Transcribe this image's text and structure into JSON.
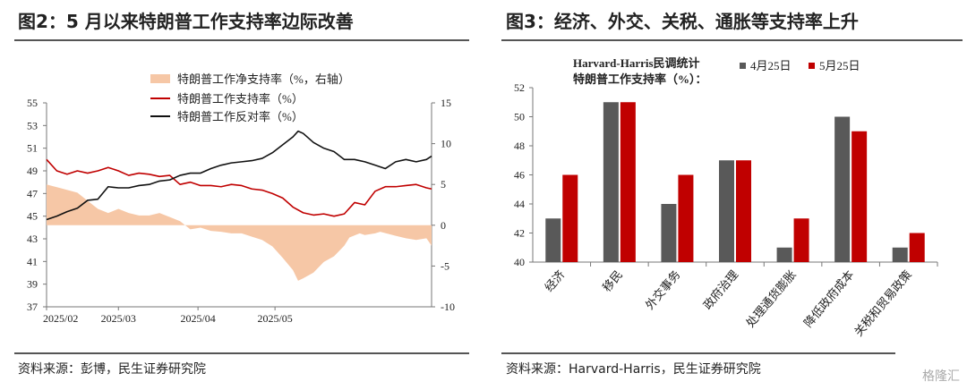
{
  "left": {
    "title": "图2：5 月以来特朗普工作支持率边际改善",
    "source": "资料来源：彭博，民生证券研究院"
  },
  "right": {
    "title": "图3：经济、外交、关税、通胀等支持率上升",
    "source": "资料来源：Harvard-Harris，民生证券研究院"
  },
  "watermark": "格隆汇",
  "chart_data": [
    {
      "type": "line",
      "legend": [
        "特朗普工作净支持率（%，右轴）",
        "特朗普工作支持率（%）",
        "特朗普工作反对率（%）"
      ],
      "x_tick_labels": [
        "2025/02",
        "2025/03",
        "2025/04",
        "2025/05"
      ],
      "y_left_range": [
        37,
        55
      ],
      "y_left_ticks": [
        37,
        39,
        41,
        43,
        45,
        47,
        49,
        51,
        53,
        55
      ],
      "y_right_range": [
        -10,
        15
      ],
      "y_right_ticks": [
        -10,
        -5,
        0,
        5,
        10,
        15
      ],
      "x_range_days": [
        0,
        120
      ],
      "series": [
        {
          "name": "特朗普工作净支持率（%，右轴）",
          "axis": "right",
          "style": "area",
          "color": "#f6c7a6",
          "points": [
            [
              0,
              5
            ],
            [
              6,
              4.5
            ],
            [
              12,
              4
            ],
            [
              16,
              3
            ],
            [
              20,
              2
            ],
            [
              24,
              1.5
            ],
            [
              28,
              2
            ],
            [
              32,
              1.5
            ],
            [
              36,
              1.2
            ],
            [
              40,
              1.2
            ],
            [
              44,
              1.5
            ],
            [
              48,
              1
            ],
            [
              52,
              0.5
            ],
            [
              56,
              -0.5
            ],
            [
              60,
              -0.3
            ],
            [
              64,
              -0.7
            ],
            [
              68,
              -0.8
            ],
            [
              72,
              -1
            ],
            [
              76,
              -1
            ],
            [
              80,
              -1.4
            ],
            [
              84,
              -1.8
            ],
            [
              88,
              -2.6
            ],
            [
              92,
              -4
            ],
            [
              96,
              -5.5
            ],
            [
              98,
              -6.8
            ],
            [
              100,
              -6.5
            ],
            [
              104,
              -5.8
            ],
            [
              108,
              -4.5
            ],
            [
              112,
              -3.8
            ],
            [
              116,
              -2.5
            ],
            [
              118,
              -1.5
            ],
            [
              122,
              -1
            ],
            [
              124,
              -1.2
            ],
            [
              128,
              -1
            ],
            [
              130,
              -0.8
            ],
            [
              136,
              -1.3
            ],
            [
              140,
              -1.6
            ],
            [
              144,
              -1.8
            ],
            [
              148,
              -1.6
            ],
            [
              150,
              -2.5
            ]
          ]
        },
        {
          "name": "特朗普工作支持率（%）",
          "axis": "left",
          "style": "line",
          "color": "#c00000",
          "points": [
            [
              0,
              50
            ],
            [
              4,
              49
            ],
            [
              8,
              48.7
            ],
            [
              12,
              49
            ],
            [
              16,
              48.8
            ],
            [
              20,
              49
            ],
            [
              24,
              49.3
            ],
            [
              28,
              49
            ],
            [
              32,
              48.6
            ],
            [
              36,
              48.8
            ],
            [
              40,
              48.7
            ],
            [
              44,
              48.5
            ],
            [
              48,
              48.6
            ],
            [
              52,
              47.8
            ],
            [
              56,
              48
            ],
            [
              60,
              47.7
            ],
            [
              64,
              47.7
            ],
            [
              68,
              47.6
            ],
            [
              72,
              47.8
            ],
            [
              76,
              47.7
            ],
            [
              80,
              47.4
            ],
            [
              84,
              47.3
            ],
            [
              88,
              47
            ],
            [
              92,
              46.6
            ],
            [
              96,
              45.8
            ],
            [
              100,
              45.3
            ],
            [
              104,
              45.1
            ],
            [
              108,
              45.2
            ],
            [
              112,
              45
            ],
            [
              116,
              45.2
            ],
            [
              120,
              46.2
            ],
            [
              124,
              46
            ],
            [
              128,
              47.2
            ],
            [
              132,
              47.6
            ],
            [
              136,
              47.6
            ],
            [
              140,
              47.7
            ],
            [
              144,
              47.8
            ],
            [
              148,
              47.5
            ],
            [
              150,
              47.4
            ]
          ]
        },
        {
          "name": "特朗普工作反对率（%）",
          "axis": "left",
          "style": "line",
          "color": "#111111",
          "points": [
            [
              0,
              44.7
            ],
            [
              4,
              45
            ],
            [
              8,
              45.4
            ],
            [
              12,
              45.7
            ],
            [
              16,
              46.4
            ],
            [
              20,
              46.5
            ],
            [
              24,
              47.6
            ],
            [
              28,
              47.5
            ],
            [
              32,
              47.5
            ],
            [
              36,
              47.7
            ],
            [
              40,
              47.8
            ],
            [
              44,
              48.1
            ],
            [
              48,
              48.2
            ],
            [
              52,
              48.6
            ],
            [
              56,
              48.8
            ],
            [
              60,
              48.8
            ],
            [
              64,
              49.2
            ],
            [
              68,
              49.5
            ],
            [
              72,
              49.7
            ],
            [
              76,
              49.8
            ],
            [
              80,
              49.9
            ],
            [
              84,
              50.1
            ],
            [
              88,
              50.6
            ],
            [
              92,
              51.3
            ],
            [
              96,
              52
            ],
            [
              98,
              52.5
            ],
            [
              100,
              52.3
            ],
            [
              104,
              51.5
            ],
            [
              108,
              51
            ],
            [
              112,
              50.7
            ],
            [
              116,
              50
            ],
            [
              120,
              50
            ],
            [
              124,
              49.8
            ],
            [
              128,
              49.5
            ],
            [
              132,
              49.2
            ],
            [
              136,
              49.8
            ],
            [
              140,
              50
            ],
            [
              144,
              49.8
            ],
            [
              148,
              50
            ],
            [
              150,
              50.3
            ]
          ]
        }
      ]
    },
    {
      "type": "bar",
      "title": "Harvard-Harris民调统计\n特朗普工作支持率（%）：",
      "categories": [
        "经济",
        "移民",
        "外交事务",
        "政府治理",
        "处理通货膨胀",
        "降低政府成本",
        "关税和贸易政策"
      ],
      "series": [
        {
          "name": "4月25日",
          "color": "#595959",
          "values": [
            43,
            51,
            44,
            47,
            41,
            50,
            41
          ]
        },
        {
          "name": "5月25日",
          "color": "#c00000",
          "values": [
            46,
            51,
            46,
            47,
            43,
            49,
            42
          ]
        }
      ],
      "ylim": [
        40,
        52
      ],
      "y_ticks": [
        40,
        42,
        44,
        46,
        48,
        50,
        52
      ]
    }
  ]
}
